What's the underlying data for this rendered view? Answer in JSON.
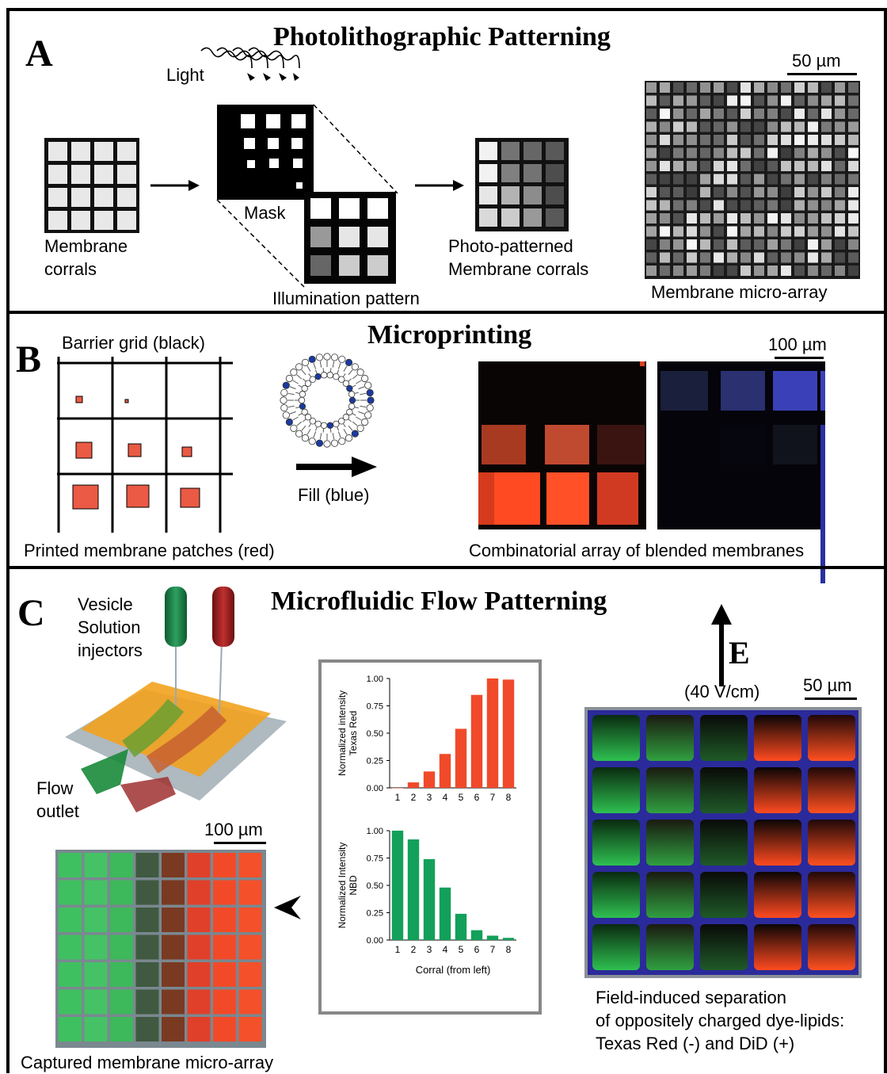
{
  "panelA": {
    "letter": "A",
    "title": "Photolithographic Patterning",
    "light_label": "Light",
    "mask_label": "Mask",
    "membrane_corrals": [
      "Membrane",
      "corrals"
    ],
    "illumination_label": "Illumination pattern",
    "photo_patterned": [
      "Photo-patterned",
      "Membrane corrals"
    ],
    "microarray_label": "Membrane micro-array",
    "scale": "50 µm"
  },
  "panelB": {
    "letter": "B",
    "title": "Microprinting",
    "barrier_label": "Barrier grid (black)",
    "printed_label": "Printed membrane patches (red)",
    "fill_label": "Fill (blue)",
    "combinatorial_label": "Combinatorial array of blended membranes",
    "scale": "100 µm"
  },
  "panelC": {
    "letter": "C",
    "title": "Microfluidic Flow Patterning",
    "injectors": [
      "Vesicle",
      "Solution",
      "injectors"
    ],
    "flow_outlet": [
      "Flow",
      "outlet"
    ],
    "scale_left": "100 µm",
    "captured_label": "Captured membrane micro-array",
    "field_letter": "E",
    "field_value": "(40 V/cm)",
    "scale_right": "50 µm",
    "separation_label": [
      "Field-induced separation",
      "of oppositely charged dye-lipids:",
      "Texas Red (-) and DiD (+)"
    ]
  },
  "colors": {
    "red": "#f04a2a",
    "green": "#12a05a",
    "blue_grid": "#2b3fb0"
  },
  "chart_data": [
    {
      "type": "bar",
      "categories": [
        "1",
        "2",
        "3",
        "4",
        "5",
        "6",
        "7",
        "8"
      ],
      "values": [
        0.0,
        0.05,
        0.15,
        0.31,
        0.54,
        0.85,
        1.0,
        0.99
      ],
      "ylabel": [
        "Normalized intensity",
        "Texas Red"
      ],
      "yticks": [
        "0.00",
        "0.25",
        "0.50",
        "0.75",
        "1.00"
      ],
      "ylim": [
        0,
        1
      ],
      "color": "#f04a2a"
    },
    {
      "type": "bar",
      "categories": [
        "1",
        "2",
        "3",
        "4",
        "5",
        "6",
        "7",
        "8"
      ],
      "values": [
        1.0,
        0.92,
        0.74,
        0.48,
        0.24,
        0.09,
        0.04,
        0.02
      ],
      "ylabel": [
        "Normalized Intensity",
        "NBD"
      ],
      "xlabel": "Corral (from left)",
      "yticks": [
        "0.00",
        "0.25",
        "0.50",
        "0.75",
        "1.00"
      ],
      "ylim": [
        0,
        1
      ],
      "color": "#12a05a"
    }
  ]
}
